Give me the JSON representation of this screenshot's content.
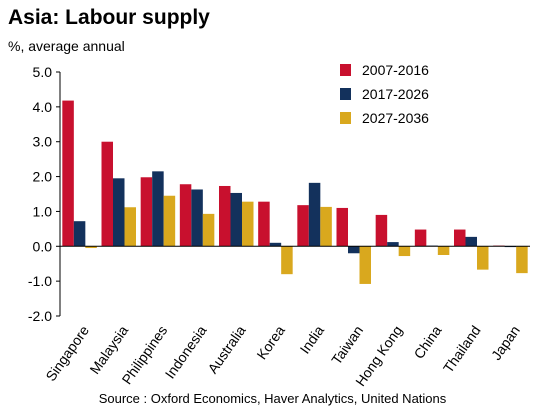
{
  "chart_data": {
    "type": "bar",
    "title": "Asia: Labour supply",
    "subtitle": "%, average annual",
    "source": "Source : Oxford Economics, Haver Analytics, United Nations",
    "categories": [
      "Singapore",
      "Malaysia",
      "Philippines",
      "Indonesia",
      "Australia",
      "Korea",
      "India",
      "Taiwan",
      "Hong Kong",
      "China",
      "Thailand",
      "Japan"
    ],
    "series": [
      {
        "name": "2007-2016",
        "color": "#c8102e",
        "values": [
          4.18,
          3.0,
          1.98,
          1.78,
          1.73,
          1.28,
          1.18,
          1.1,
          0.9,
          0.48,
          0.48,
          0.02
        ]
      },
      {
        "name": "2017-2026",
        "color": "#13315c",
        "values": [
          0.72,
          1.95,
          2.15,
          1.63,
          1.53,
          0.1,
          1.82,
          -0.2,
          0.12,
          0.02,
          0.27,
          -0.02
        ]
      },
      {
        "name": "2027-2036",
        "color": "#d9a81e",
        "values": [
          -0.05,
          1.12,
          1.45,
          0.93,
          1.28,
          -0.8,
          1.13,
          -1.08,
          -0.28,
          -0.25,
          -0.67,
          -0.77
        ]
      }
    ],
    "ylim": [
      -2.0,
      5.0
    ],
    "yticks": [
      "5.0",
      "4.0",
      "3.0",
      "2.0",
      "1.0",
      "0.0",
      "-1.0",
      "-2.0"
    ],
    "ytick_values": [
      5,
      4,
      3,
      2,
      1,
      0,
      -1,
      -2
    ],
    "grid": false,
    "legend": "top-right"
  }
}
